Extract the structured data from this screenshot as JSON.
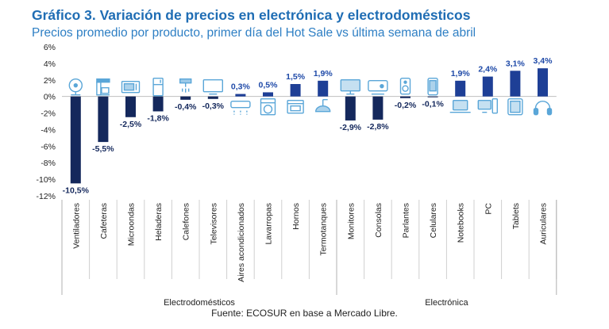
{
  "title": "Gráfico 3. Variación de precios en electrónica y electrodomésticos",
  "subtitle": "Precios promedio por producto, primer día del Hot Sale vs última semana de abril",
  "source": "Fuente: ECOSUR en base a Mercado Libre.",
  "colors": {
    "title": "#1f6db4",
    "subtitle": "#2e7fc4",
    "bar_negative": "#14285c",
    "bar_positive": "#1e3f96",
    "label_negative": "#14285c",
    "label_positive": "#1f4aa8",
    "icon": "#5aa6d8"
  },
  "chart_data": {
    "type": "bar",
    "ylim": [
      -12,
      6
    ],
    "yticks": [
      "6%",
      "4%",
      "2%",
      "0%",
      "-2%",
      "-4%",
      "-6%",
      "-8%",
      "-10%",
      "-12%"
    ],
    "ytick_values": [
      6,
      4,
      2,
      0,
      -2,
      -4,
      -6,
      -8,
      -10,
      -12
    ],
    "categories": [
      "Ventiladores",
      "Cafeteras",
      "Microondas",
      "Heladeras",
      "Calefones",
      "Televisores",
      "Aires acondicionados",
      "Lavarropas",
      "Hornos",
      "Termotanques",
      "Monitores",
      "Consolas",
      "Parlantes",
      "Celulares",
      "Notebooks",
      "PC",
      "Tablets",
      "Auriculares"
    ],
    "values": [
      -10.5,
      -5.5,
      -2.5,
      -1.8,
      -0.4,
      -0.3,
      0.3,
      0.5,
      1.5,
      1.9,
      -2.9,
      -2.8,
      -0.2,
      -0.1,
      1.9,
      2.4,
      3.1,
      3.4
    ],
    "labels": [
      "-10,5%",
      "-5,5%",
      "-2,5%",
      "-1,8%",
      "-0,4%",
      "-0,3%",
      "0,3%",
      "0,5%",
      "1,5%",
      "1,9%",
      "-2,9%",
      "-2,8%",
      "-0,2%",
      "-0,1%",
      "1,9%",
      "2,4%",
      "3,1%",
      "3,4%"
    ],
    "icons": [
      "fan-icon",
      "coffee-maker-icon",
      "microwave-icon",
      "fridge-icon",
      "water-heater-icon",
      "tv-icon",
      "air-conditioner-icon",
      "washing-machine-icon",
      "oven-icon",
      "boiler-icon",
      "monitor-icon",
      "game-console-icon",
      "speaker-icon",
      "cellphone-icon",
      "laptop-icon",
      "desktop-pc-icon",
      "tablet-icon",
      "headphones-icon"
    ],
    "groups": [
      {
        "name": "Electrodomésticos",
        "count": 10
      },
      {
        "name": "Electrónica",
        "count": 8
      }
    ]
  }
}
